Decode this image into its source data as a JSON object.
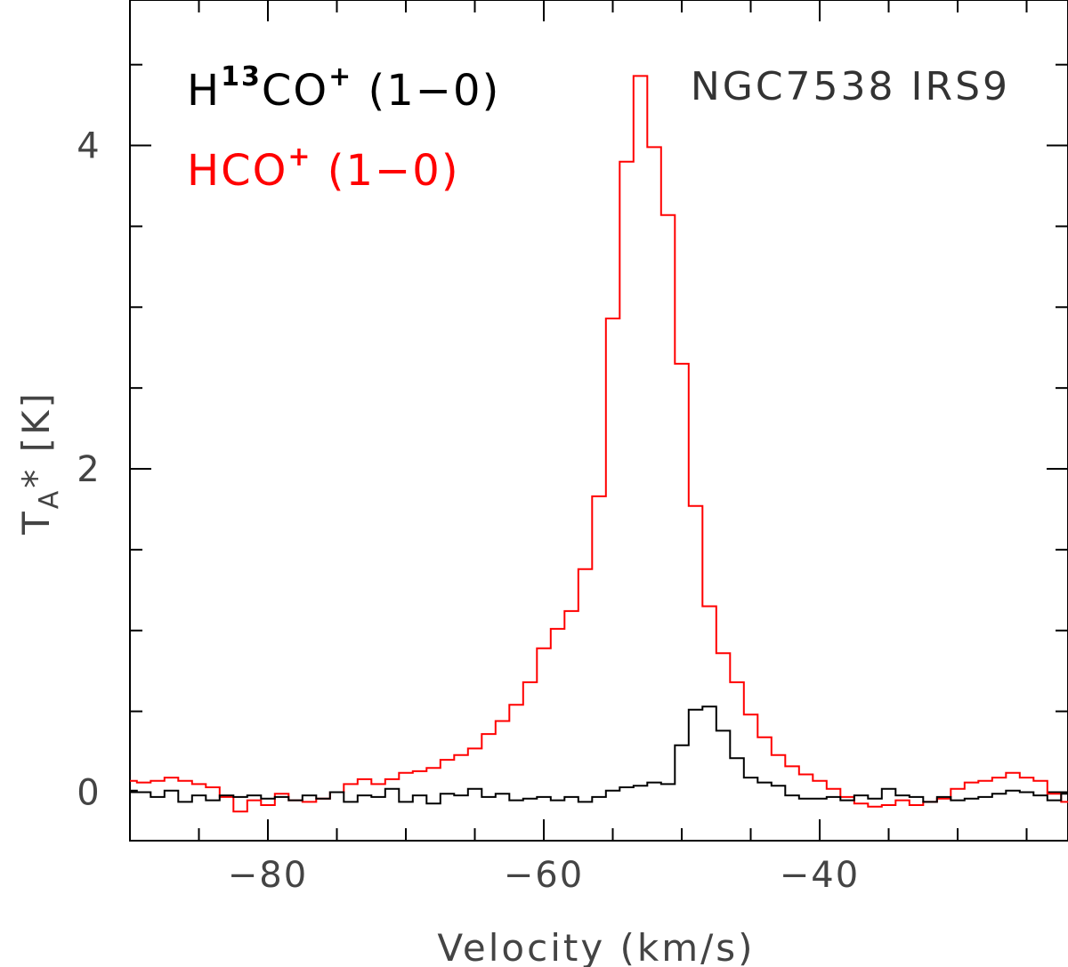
{
  "chart_data": {
    "type": "line",
    "style": "step",
    "title": "",
    "source_name": "NGC7538 IRS9",
    "xlabel": "Velocity (km/s)",
    "ylabel": {
      "main": "T",
      "sub": "A",
      "rest": "* [K]"
    },
    "xlim": [
      -90,
      -22
    ],
    "ylim": [
      -0.3,
      4.9
    ],
    "x_ticks_major": [
      -80,
      -60,
      -40
    ],
    "x_tick_labels": [
      "−80",
      "−60",
      "−40"
    ],
    "x_ticks_minor": [
      -85,
      -75,
      -70,
      -65,
      -55,
      -50,
      -45,
      -35,
      -30,
      -25
    ],
    "y_ticks_major": [
      0,
      2,
      4
    ],
    "y_tick_labels": [
      "0",
      "2",
      "4"
    ],
    "y_ticks_minor": [
      0.5,
      1,
      1.5,
      2.5,
      3,
      3.5,
      4.5
    ],
    "legend": [
      {
        "key": "h13cop",
        "color": "#000000",
        "base": "H",
        "sup1": "13",
        "mid": "CO",
        "sup2": "+",
        "tail": " (1−0)"
      },
      {
        "key": "hcop",
        "color": "#ff0000",
        "base": "HCO",
        "sup1": "+",
        "mid": "",
        "sup2": "",
        "tail": " (1−0)"
      }
    ],
    "series": [
      {
        "name": "HCO+ (1-0)",
        "color": "#ff0000",
        "x_start": -90,
        "step": 1,
        "values": [
          0.07,
          0.06,
          0.07,
          0.09,
          0.07,
          0.05,
          0.03,
          -0.03,
          -0.12,
          -0.05,
          -0.08,
          -0.01,
          -0.05,
          -0.06,
          -0.04,
          0.0,
          0.05,
          0.08,
          0.05,
          0.08,
          0.12,
          0.13,
          0.15,
          0.2,
          0.23,
          0.27,
          0.36,
          0.44,
          0.54,
          0.68,
          0.89,
          1.01,
          1.12,
          1.38,
          1.83,
          2.93,
          3.9,
          4.43,
          3.99,
          3.57,
          2.65,
          1.77,
          1.15,
          0.86,
          0.68,
          0.48,
          0.34,
          0.23,
          0.16,
          0.11,
          0.07,
          0.02,
          -0.03,
          -0.07,
          -0.09,
          -0.08,
          -0.05,
          -0.08,
          -0.06,
          -0.04,
          0.02,
          0.06,
          0.07,
          0.09,
          0.12,
          0.09,
          0.07,
          -0.01,
          -0.06,
          -0.1
        ]
      },
      {
        "name": "H13CO+ (1-0)",
        "color": "#000000",
        "x_start": -90,
        "step": 1,
        "values": [
          0.01,
          0.0,
          -0.03,
          0.01,
          -0.06,
          -0.02,
          -0.05,
          -0.02,
          -0.03,
          -0.02,
          -0.04,
          -0.03,
          -0.05,
          -0.02,
          -0.04,
          0.0,
          -0.06,
          -0.02,
          -0.03,
          0.02,
          -0.06,
          -0.02,
          -0.07,
          -0.01,
          -0.02,
          0.02,
          -0.03,
          -0.01,
          -0.05,
          -0.04,
          -0.03,
          -0.05,
          -0.03,
          -0.06,
          -0.03,
          0.01,
          0.03,
          0.04,
          0.06,
          0.05,
          0.29,
          0.51,
          0.53,
          0.38,
          0.21,
          0.09,
          0.06,
          0.04,
          -0.02,
          -0.04,
          -0.04,
          -0.03,
          -0.05,
          -0.02,
          -0.04,
          0.02,
          -0.02,
          -0.03,
          -0.06,
          -0.03,
          -0.05,
          -0.04,
          -0.03,
          -0.01,
          0.01,
          0.0,
          -0.02,
          -0.05,
          -0.01,
          -0.03
        ]
      }
    ]
  }
}
